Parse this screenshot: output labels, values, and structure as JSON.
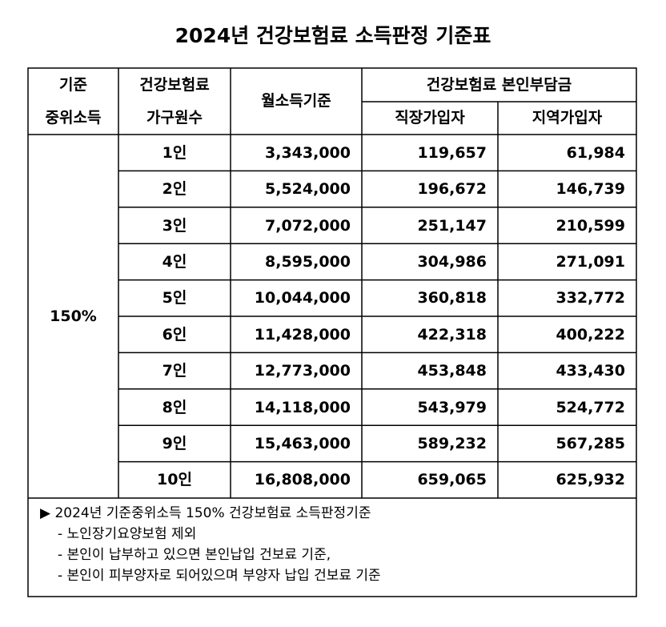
{
  "title": "2024년 건강보험료 소득판정 기준표",
  "table": {
    "header": {
      "median_income": [
        "기준",
        "중위소득"
      ],
      "household": [
        "건강보험료",
        "가구원수"
      ],
      "monthly_income": "월소득기준",
      "premium": "건강보험료 본인부담금",
      "employee": "직장가입자",
      "regional": "지역가입자"
    },
    "level": "150%",
    "rows": [
      [
        "1인",
        "3,343,000",
        "119,657",
        "61,984"
      ],
      [
        "2인",
        "5,524,000",
        "196,672",
        "146,739"
      ],
      [
        "3인",
        "7,072,000",
        "251,147",
        "210,599"
      ],
      [
        "4인",
        "8,595,000",
        "304,986",
        "271,091"
      ],
      [
        "5인",
        "10,044,000",
        "360,818",
        "332,772"
      ],
      [
        "6인",
        "11,428,000",
        "422,318",
        "400,222"
      ],
      [
        "7인",
        "12,773,000",
        "453,848",
        "433,430"
      ],
      [
        "8인",
        "14,118,000",
        "543,979",
        "524,772"
      ],
      [
        "9인",
        "15,463,000",
        "589,232",
        "567,285"
      ],
      [
        "10인",
        "16,808,000",
        "659,065",
        "625,932"
      ]
    ]
  },
  "notes": [
    "▶ 2024년 기준중위소득 150% 건강보험료 소득판정기준",
    "- 노인장기요양보험 제외",
    "- 본인이 납부하고 있으면 본인납입 건보료 기준,",
    "- 본인이 피부양자로 되어있으며 부양자 납입 건보료 기준"
  ]
}
